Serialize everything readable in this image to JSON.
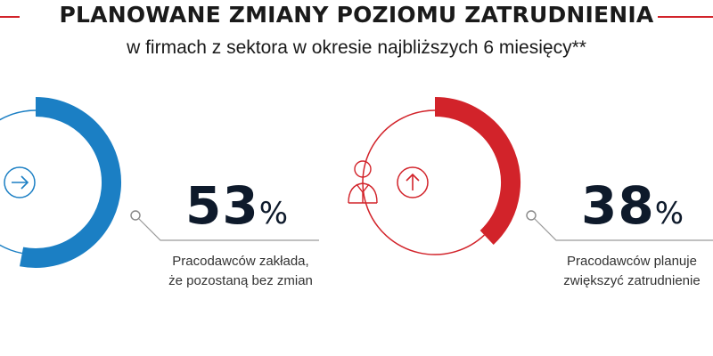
{
  "header": {
    "title": "PLANOWANE ZMIANY POZIOMU ZATRUDNIENIA",
    "subtitle": "w firmach z sektora w okresie najbliższych 6 miesięcy**"
  },
  "colors": {
    "accent_red": "#d2232a",
    "accent_blue": "#1b7fc4",
    "text_dark": "#0e1a2b"
  },
  "chart_data": [
    {
      "type": "pie",
      "value": 53,
      "value_label": "53",
      "unit": "%",
      "caption": [
        "Pracodawców zakłada,",
        "że pozostaną bez zmian"
      ],
      "color": "#1b7fc4",
      "icon": "right-arrow-icon"
    },
    {
      "type": "pie",
      "value": 38,
      "value_label": "38",
      "unit": "%",
      "caption": [
        "Pracodawców planuje",
        "zwiększyć zatrudnienie"
      ],
      "color": "#d2232a",
      "icon": "up-arrow-icon"
    }
  ]
}
